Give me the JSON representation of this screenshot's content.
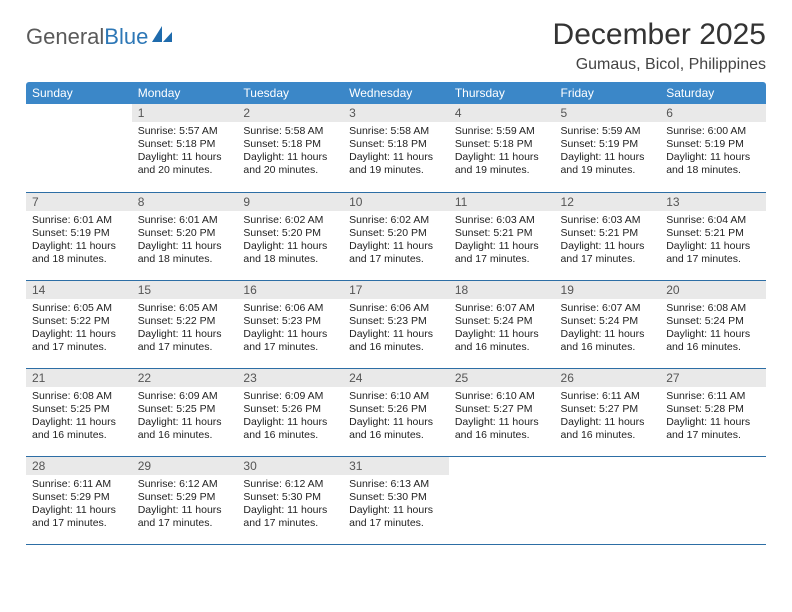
{
  "brand": {
    "word1": "General",
    "word2": "Blue"
  },
  "title": "December 2025",
  "location": "Gumaus, Bicol, Philippines",
  "colors": {
    "header_bg": "#3b87c8",
    "row_divider": "#2d6ea5",
    "daynum_bg": "#e9e9e9",
    "text": "#222222",
    "logo_gray": "#5a5a5a",
    "logo_blue": "#2d77b6"
  },
  "weekdays": [
    "Sunday",
    "Monday",
    "Tuesday",
    "Wednesday",
    "Thursday",
    "Friday",
    "Saturday"
  ],
  "start_offset": 1,
  "days": [
    {
      "n": 1,
      "sunrise": "5:57 AM",
      "sunset": "5:18 PM",
      "daylight": "11 hours and 20 minutes."
    },
    {
      "n": 2,
      "sunrise": "5:58 AM",
      "sunset": "5:18 PM",
      "daylight": "11 hours and 20 minutes."
    },
    {
      "n": 3,
      "sunrise": "5:58 AM",
      "sunset": "5:18 PM",
      "daylight": "11 hours and 19 minutes."
    },
    {
      "n": 4,
      "sunrise": "5:59 AM",
      "sunset": "5:18 PM",
      "daylight": "11 hours and 19 minutes."
    },
    {
      "n": 5,
      "sunrise": "5:59 AM",
      "sunset": "5:19 PM",
      "daylight": "11 hours and 19 minutes."
    },
    {
      "n": 6,
      "sunrise": "6:00 AM",
      "sunset": "5:19 PM",
      "daylight": "11 hours and 18 minutes."
    },
    {
      "n": 7,
      "sunrise": "6:01 AM",
      "sunset": "5:19 PM",
      "daylight": "11 hours and 18 minutes."
    },
    {
      "n": 8,
      "sunrise": "6:01 AM",
      "sunset": "5:20 PM",
      "daylight": "11 hours and 18 minutes."
    },
    {
      "n": 9,
      "sunrise": "6:02 AM",
      "sunset": "5:20 PM",
      "daylight": "11 hours and 18 minutes."
    },
    {
      "n": 10,
      "sunrise": "6:02 AM",
      "sunset": "5:20 PM",
      "daylight": "11 hours and 17 minutes."
    },
    {
      "n": 11,
      "sunrise": "6:03 AM",
      "sunset": "5:21 PM",
      "daylight": "11 hours and 17 minutes."
    },
    {
      "n": 12,
      "sunrise": "6:03 AM",
      "sunset": "5:21 PM",
      "daylight": "11 hours and 17 minutes."
    },
    {
      "n": 13,
      "sunrise": "6:04 AM",
      "sunset": "5:21 PM",
      "daylight": "11 hours and 17 minutes."
    },
    {
      "n": 14,
      "sunrise": "6:05 AM",
      "sunset": "5:22 PM",
      "daylight": "11 hours and 17 minutes."
    },
    {
      "n": 15,
      "sunrise": "6:05 AM",
      "sunset": "5:22 PM",
      "daylight": "11 hours and 17 minutes."
    },
    {
      "n": 16,
      "sunrise": "6:06 AM",
      "sunset": "5:23 PM",
      "daylight": "11 hours and 17 minutes."
    },
    {
      "n": 17,
      "sunrise": "6:06 AM",
      "sunset": "5:23 PM",
      "daylight": "11 hours and 16 minutes."
    },
    {
      "n": 18,
      "sunrise": "6:07 AM",
      "sunset": "5:24 PM",
      "daylight": "11 hours and 16 minutes."
    },
    {
      "n": 19,
      "sunrise": "6:07 AM",
      "sunset": "5:24 PM",
      "daylight": "11 hours and 16 minutes."
    },
    {
      "n": 20,
      "sunrise": "6:08 AM",
      "sunset": "5:24 PM",
      "daylight": "11 hours and 16 minutes."
    },
    {
      "n": 21,
      "sunrise": "6:08 AM",
      "sunset": "5:25 PM",
      "daylight": "11 hours and 16 minutes."
    },
    {
      "n": 22,
      "sunrise": "6:09 AM",
      "sunset": "5:25 PM",
      "daylight": "11 hours and 16 minutes."
    },
    {
      "n": 23,
      "sunrise": "6:09 AM",
      "sunset": "5:26 PM",
      "daylight": "11 hours and 16 minutes."
    },
    {
      "n": 24,
      "sunrise": "6:10 AM",
      "sunset": "5:26 PM",
      "daylight": "11 hours and 16 minutes."
    },
    {
      "n": 25,
      "sunrise": "6:10 AM",
      "sunset": "5:27 PM",
      "daylight": "11 hours and 16 minutes."
    },
    {
      "n": 26,
      "sunrise": "6:11 AM",
      "sunset": "5:27 PM",
      "daylight": "11 hours and 16 minutes."
    },
    {
      "n": 27,
      "sunrise": "6:11 AM",
      "sunset": "5:28 PM",
      "daylight": "11 hours and 17 minutes."
    },
    {
      "n": 28,
      "sunrise": "6:11 AM",
      "sunset": "5:29 PM",
      "daylight": "11 hours and 17 minutes."
    },
    {
      "n": 29,
      "sunrise": "6:12 AM",
      "sunset": "5:29 PM",
      "daylight": "11 hours and 17 minutes."
    },
    {
      "n": 30,
      "sunrise": "6:12 AM",
      "sunset": "5:30 PM",
      "daylight": "11 hours and 17 minutes."
    },
    {
      "n": 31,
      "sunrise": "6:13 AM",
      "sunset": "5:30 PM",
      "daylight": "11 hours and 17 minutes."
    }
  ],
  "labels": {
    "sunrise": "Sunrise:",
    "sunset": "Sunset:",
    "daylight": "Daylight:"
  }
}
